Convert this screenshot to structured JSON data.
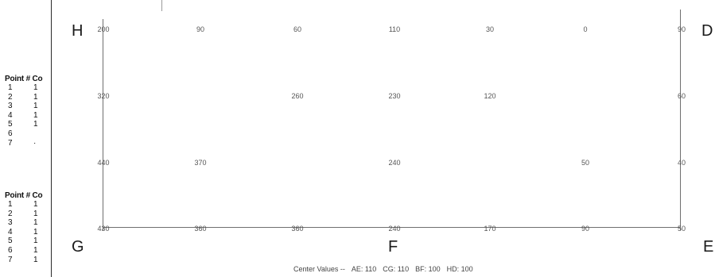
{
  "left_panel": {
    "tables": [
      {
        "header": "Point # Co",
        "rows": [
          {
            "num": "1",
            "val": "1"
          },
          {
            "num": "2",
            "val": "1"
          },
          {
            "num": "3",
            "val": "1"
          },
          {
            "num": "4",
            "val": "1"
          },
          {
            "num": "5",
            "val": "1"
          },
          {
            "num": "6",
            "val": ""
          },
          {
            "num": "7",
            "val": "·"
          }
        ]
      },
      {
        "header": "Point # Co",
        "rows": [
          {
            "num": "1",
            "val": "1"
          },
          {
            "num": "2",
            "val": "1"
          },
          {
            "num": "3",
            "val": "1"
          },
          {
            "num": "4",
            "val": "1"
          },
          {
            "num": "5",
            "val": "1"
          },
          {
            "num": "6",
            "val": "1"
          },
          {
            "num": "7",
            "val": "1"
          }
        ]
      }
    ]
  },
  "corners": {
    "top_left": "H",
    "top_right": "D",
    "bottom_left": "G",
    "bottom_middle": "F",
    "bottom_right": "E"
  },
  "grid": {
    "rows": [
      [
        "200",
        "90",
        "60",
        "110",
        "30",
        "0",
        "90"
      ],
      [
        "320",
        "",
        "260",
        "230",
        "120",
        "",
        "60"
      ],
      [
        "440",
        "370",
        "",
        "240",
        "",
        "50",
        "40"
      ],
      [
        "430",
        "360",
        "360",
        "240",
        "170",
        "90",
        "50"
      ]
    ]
  },
  "center_values": {
    "label": "Center Values --",
    "ae": "AE: 110",
    "cg": "CG: 110",
    "bf": "BF: 100",
    "hd": "HD: 100"
  },
  "colors": {
    "line": "#6f6f6f",
    "text": "#555555",
    "panel_border": "#2a2a2a"
  }
}
